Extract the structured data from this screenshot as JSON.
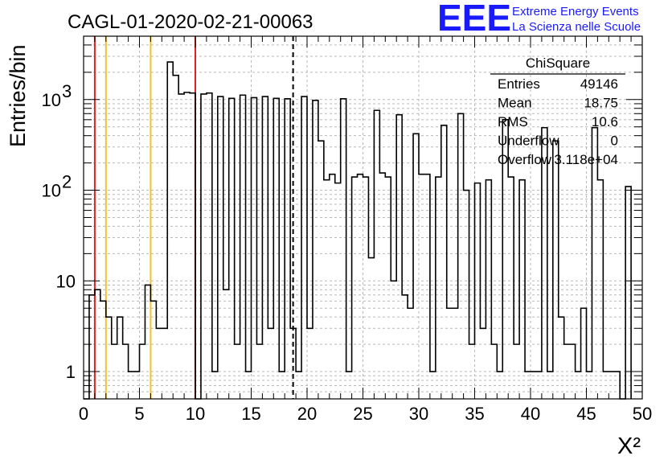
{
  "chart_data": {
    "type": "histogram",
    "title": "CAGL-01-2020-02-21-00063",
    "xlabel": "X²",
    "ylabel": "Entries/bin",
    "xlim": [
      0,
      50
    ],
    "ylim": [
      0.5,
      5000
    ],
    "yscale": "log",
    "bin_width": 0.5,
    "grid": true,
    "x_ticks": [
      "0",
      "5",
      "10",
      "15",
      "20",
      "25",
      "30",
      "35",
      "40",
      "45",
      "50"
    ],
    "y_ticks": [
      {
        "value": 1,
        "label": "1"
      },
      {
        "value": 10,
        "label": "10"
      },
      {
        "value": 100,
        "label": "10",
        "exp": "2"
      },
      {
        "value": 1000,
        "label": "10",
        "exp": "3"
      }
    ],
    "bins": [
      {
        "x": 0.0,
        "y": 0
      },
      {
        "x": 0.5,
        "y": 7
      },
      {
        "x": 1.0,
        "y": 8
      },
      {
        "x": 1.5,
        "y": 6
      },
      {
        "x": 2.0,
        "y": 4
      },
      {
        "x": 2.5,
        "y": 2
      },
      {
        "x": 3.0,
        "y": 4
      },
      {
        "x": 3.5,
        "y": 2
      },
      {
        "x": 4.0,
        "y": 1
      },
      {
        "x": 4.5,
        "y": 1
      },
      {
        "x": 5.0,
        "y": 2
      },
      {
        "x": 5.5,
        "y": 9
      },
      {
        "x": 6.0,
        "y": 6
      },
      {
        "x": 6.5,
        "y": 3
      },
      {
        "x": 7.0,
        "y": 3
      },
      {
        "x": 7.5,
        "y": 2600
      },
      {
        "x": 8.0,
        "y": 1850
      },
      {
        "x": 8.5,
        "y": 1150
      },
      {
        "x": 9.0,
        "y": 1200
      },
      {
        "x": 9.5,
        "y": 1180
      },
      {
        "x": 10.0,
        "y": 0
      },
      {
        "x": 10.5,
        "y": 1150
      },
      {
        "x": 11.0,
        "y": 1180
      },
      {
        "x": 11.5,
        "y": 1
      },
      {
        "x": 12.0,
        "y": 1080
      },
      {
        "x": 12.5,
        "y": 8
      },
      {
        "x": 13.0,
        "y": 1030
      },
      {
        "x": 13.5,
        "y": 2
      },
      {
        "x": 14.0,
        "y": 1120
      },
      {
        "x": 14.5,
        "y": 1
      },
      {
        "x": 15.0,
        "y": 1050
      },
      {
        "x": 15.5,
        "y": 2
      },
      {
        "x": 16.0,
        "y": 1080
      },
      {
        "x": 16.5,
        "y": 3
      },
      {
        "x": 17.0,
        "y": 1030
      },
      {
        "x": 17.5,
        "y": 1
      },
      {
        "x": 18.0,
        "y": 1020
      },
      {
        "x": 18.5,
        "y": 3
      },
      {
        "x": 19.0,
        "y": 1
      },
      {
        "x": 19.5,
        "y": 1080
      },
      {
        "x": 20.0,
        "y": 3
      },
      {
        "x": 20.5,
        "y": 980
      },
      {
        "x": 21.0,
        "y": 350
      },
      {
        "x": 21.5,
        "y": 130
      },
      {
        "x": 22.0,
        "y": 150
      },
      {
        "x": 22.5,
        "y": 120
      },
      {
        "x": 23.0,
        "y": 1020
      },
      {
        "x": 23.5,
        "y": 1
      },
      {
        "x": 24.0,
        "y": 140
      },
      {
        "x": 24.5,
        "y": 150
      },
      {
        "x": 25.0,
        "y": 140
      },
      {
        "x": 25.5,
        "y": 18
      },
      {
        "x": 26.0,
        "y": 760
      },
      {
        "x": 26.5,
        "y": 155
      },
      {
        "x": 27.0,
        "y": 140
      },
      {
        "x": 27.5,
        "y": 10
      },
      {
        "x": 28.0,
        "y": 680
      },
      {
        "x": 28.5,
        "y": 7
      },
      {
        "x": 29.0,
        "y": 5
      },
      {
        "x": 29.5,
        "y": 420
      },
      {
        "x": 30.0,
        "y": 150
      },
      {
        "x": 30.5,
        "y": 150
      },
      {
        "x": 31.0,
        "y": 1
      },
      {
        "x": 31.5,
        "y": 140
      },
      {
        "x": 32.0,
        "y": 520
      },
      {
        "x": 32.5,
        "y": 5
      },
      {
        "x": 33.0,
        "y": 5
      },
      {
        "x": 33.5,
        "y": 700
      },
      {
        "x": 34.0,
        "y": 100
      },
      {
        "x": 34.5,
        "y": 2
      },
      {
        "x": 35.0,
        "y": 120
      },
      {
        "x": 35.5,
        "y": 3
      },
      {
        "x": 36.0,
        "y": 130
      },
      {
        "x": 36.5,
        "y": 2
      },
      {
        "x": 37.0,
        "y": 1
      },
      {
        "x": 37.5,
        "y": 600
      },
      {
        "x": 38.0,
        "y": 140
      },
      {
        "x": 38.5,
        "y": 2
      },
      {
        "x": 39.0,
        "y": 130
      },
      {
        "x": 39.5,
        "y": 1
      },
      {
        "x": 40.0,
        "y": 1
      },
      {
        "x": 40.5,
        "y": 1
      },
      {
        "x": 41.0,
        "y": 490
      },
      {
        "x": 41.5,
        "y": 1
      },
      {
        "x": 42.0,
        "y": 350
      },
      {
        "x": 42.5,
        "y": 4
      },
      {
        "x": 43.0,
        "y": 2
      },
      {
        "x": 43.5,
        "y": 2
      },
      {
        "x": 44.0,
        "y": 1
      },
      {
        "x": 44.5,
        "y": 5
      },
      {
        "x": 45.0,
        "y": 1
      },
      {
        "x": 45.5,
        "y": 490
      },
      {
        "x": 46.0,
        "y": 130
      },
      {
        "x": 46.5,
        "y": 1
      },
      {
        "x": 47.0,
        "y": 1
      },
      {
        "x": 47.5,
        "y": 1
      },
      {
        "x": 48.0,
        "y": 0
      },
      {
        "x": 48.5,
        "y": 110
      }
    ],
    "vertical_lines": [
      {
        "x": 1.0,
        "color": "#e02020",
        "style": "solid"
      },
      {
        "x": 10.0,
        "color": "#e02020",
        "style": "solid"
      },
      {
        "x": 2.0,
        "color": "#f2c12e",
        "style": "solid"
      },
      {
        "x": 6.0,
        "color": "#f2c12e",
        "style": "solid"
      },
      {
        "x": 18.75,
        "color": "#000000",
        "style": "dashed"
      }
    ],
    "stats": {
      "name": "ChiSquare",
      "rows": [
        {
          "label": "Entries",
          "value": "49146"
        },
        {
          "label": "Mean",
          "value": "18.75"
        },
        {
          "label": "RMS",
          "value": "10.6"
        },
        {
          "label": "Underflow",
          "value": "0"
        },
        {
          "label": "Overflow",
          "value": "3.118e+04"
        }
      ]
    }
  },
  "logo": {
    "mark": "EEE",
    "line1": "Extreme Energy Events",
    "line2": "La Scienza nelle Scuole",
    "color": "#1a1aff"
  }
}
